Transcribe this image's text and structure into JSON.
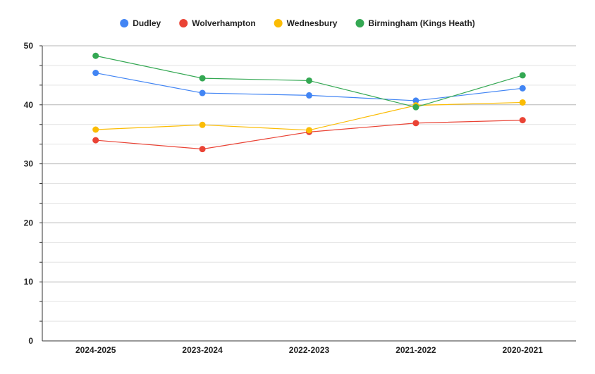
{
  "chart_data": {
    "type": "line",
    "categories": [
      "2024-2025",
      "2023-2024",
      "2022-2023",
      "2021-2022",
      "2020-2021"
    ],
    "series": [
      {
        "name": "Dudley",
        "color": "#4285f4",
        "values": [
          45.4,
          42.0,
          41.6,
          40.7,
          42.8
        ]
      },
      {
        "name": "Wolverhampton",
        "color": "#ea4335",
        "values": [
          34.0,
          32.5,
          35.4,
          36.9,
          37.4
        ]
      },
      {
        "name": "Wednesbury",
        "color": "#fbbc04",
        "values": [
          35.8,
          36.6,
          35.7,
          39.9,
          40.4
        ]
      },
      {
        "name": "Birmingham (Kings Heath)",
        "color": "#34a853",
        "values": [
          48.3,
          44.5,
          44.1,
          39.6,
          45.0
        ]
      }
    ],
    "y_ticks": [
      "0",
      "10",
      "20",
      "30",
      "40",
      "50"
    ],
    "ylim": [
      0,
      50
    ],
    "grid": true,
    "legend_position": "top"
  }
}
